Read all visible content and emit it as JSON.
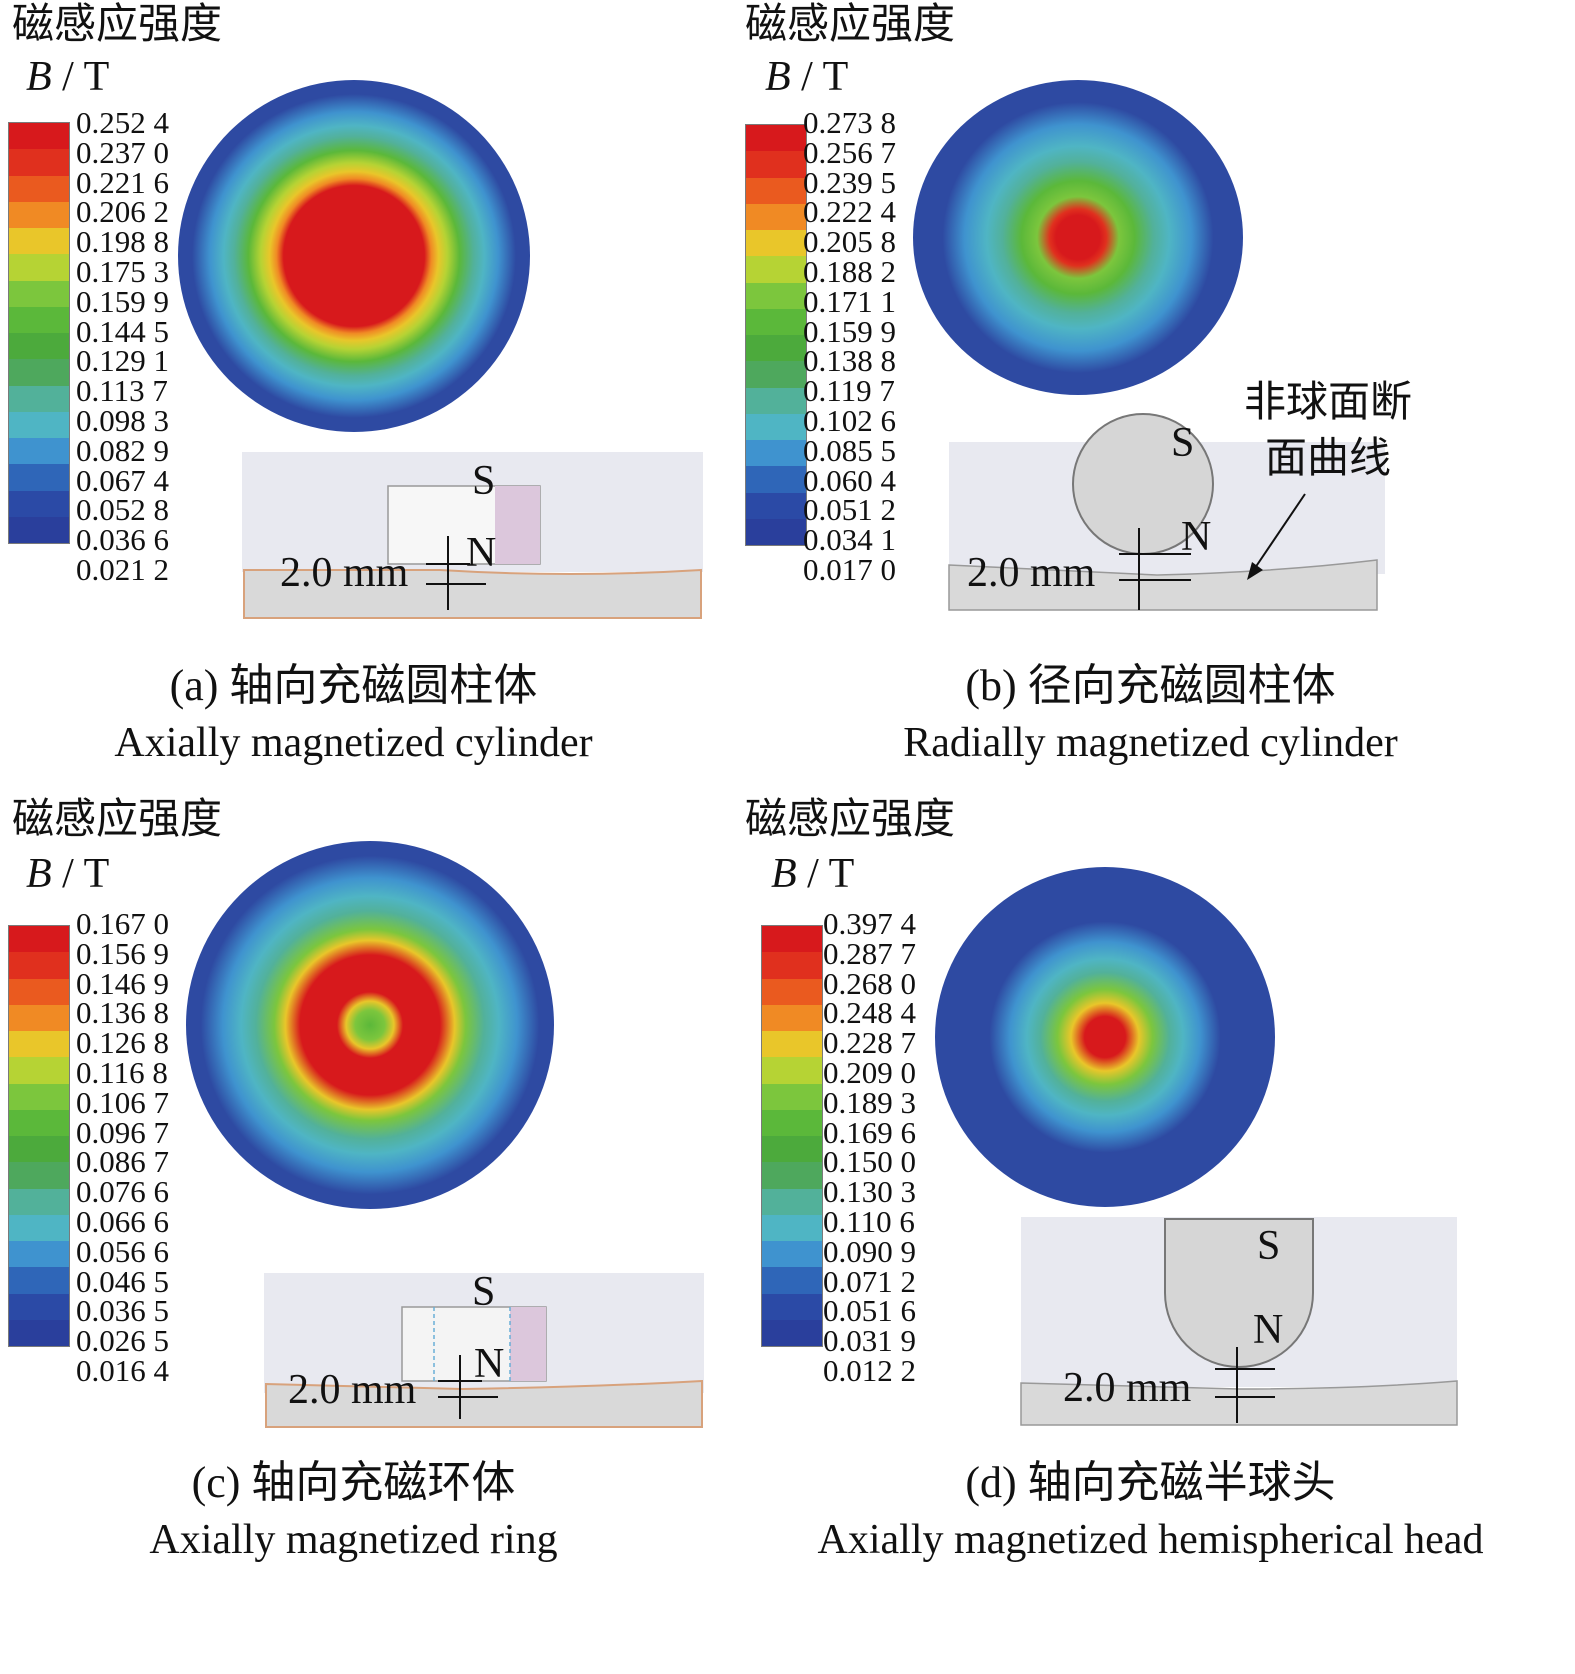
{
  "panels": [
    {
      "id": "a",
      "title": "磁感应强度",
      "unit_symbol": "B",
      "unit_rest": " / T",
      "ticks": [
        "0.252 4",
        "0.237 0",
        "0.221 6",
        "0.206 2",
        "0.198 8",
        "0.175 3",
        "0.159 9",
        "0.144 5",
        "0.129 1",
        "0.113 7",
        "0.098 3",
        "0.082 9",
        "0.067 4",
        "0.052 8",
        "0.036 6",
        "0.021 2"
      ],
      "caption_zh": "(a) 轴向充磁圆柱体",
      "caption_en": "Axially magnetized cylinder",
      "pole_s": "S",
      "pole_n": "N",
      "gap_label": "2.0 mm"
    },
    {
      "id": "b",
      "title": "磁感应强度",
      "unit_symbol": "B",
      "unit_rest": " / T",
      "ticks": [
        "0.273 8",
        "0.256 7",
        "0.239 5",
        "0.222 4",
        "0.205 8",
        "0.188 2",
        "0.171 1",
        "0.159 9",
        "0.138 8",
        "0.119 7",
        "0.102 6",
        "0.085 5",
        "0.060 4",
        "0.051 2",
        "0.034 1",
        "0.017 0"
      ],
      "caption_zh": "(b) 径向充磁圆柱体",
      "caption_en": "Radially magnetized cylinder",
      "pole_s": "S",
      "pole_n": "N",
      "gap_label": "2.0 mm",
      "annotation_line1": "非球面断",
      "annotation_line2": "面曲线"
    },
    {
      "id": "c",
      "title": "磁感应强度",
      "unit_symbol": "B",
      "unit_rest": " / T",
      "ticks": [
        "0.167 0",
        "0.156 9",
        "0.146 9",
        "0.136 8",
        "0.126 8",
        "0.116 8",
        "0.106 7",
        "0.096 7",
        "0.086 7",
        "0.076 6",
        "0.066 6",
        "0.056 6",
        "0.046 5",
        "0.036 5",
        "0.026 5",
        "0.016 4"
      ],
      "caption_zh": "(c) 轴向充磁环体",
      "caption_en": "Axially magnetized ring",
      "pole_s": "S",
      "pole_n": "N",
      "gap_label": "2.0 mm"
    },
    {
      "id": "d",
      "title": "磁感应强度",
      "unit_symbol": "B",
      "unit_rest": " / T",
      "ticks": [
        "0.397 4",
        "0.287 7",
        "0.268 0",
        "0.248 4",
        "0.228 7",
        "0.209 0",
        "0.189 3",
        "0.169 6",
        "0.150 0",
        "0.130 3",
        "0.110 6",
        "0.090 9",
        "0.071 2",
        "0.051 6",
        "0.031 9",
        "0.012 2"
      ],
      "caption_zh": "(d) 轴向充磁半球头",
      "caption_en": "Axially magnetized hemispherical head",
      "pole_s": "S",
      "pole_n": "N",
      "gap_label": "2.0 mm"
    }
  ],
  "colors": {
    "legend": [
      "#d7191c",
      "#e0301e",
      "#ea5a1f",
      "#f08a24",
      "#e9c62a",
      "#b6d334",
      "#7cc63d",
      "#5bb83a",
      "#4caa3c",
      "#4ea85d",
      "#52b19a",
      "#4fb5c4",
      "#3f93cf",
      "#2f66b8",
      "#2b4aa6",
      "#2a3f9c"
    ],
    "disc_blue": "#2e4aa2",
    "body_fill": "#d8d8d8",
    "bg_band": "#e7e8ef"
  }
}
